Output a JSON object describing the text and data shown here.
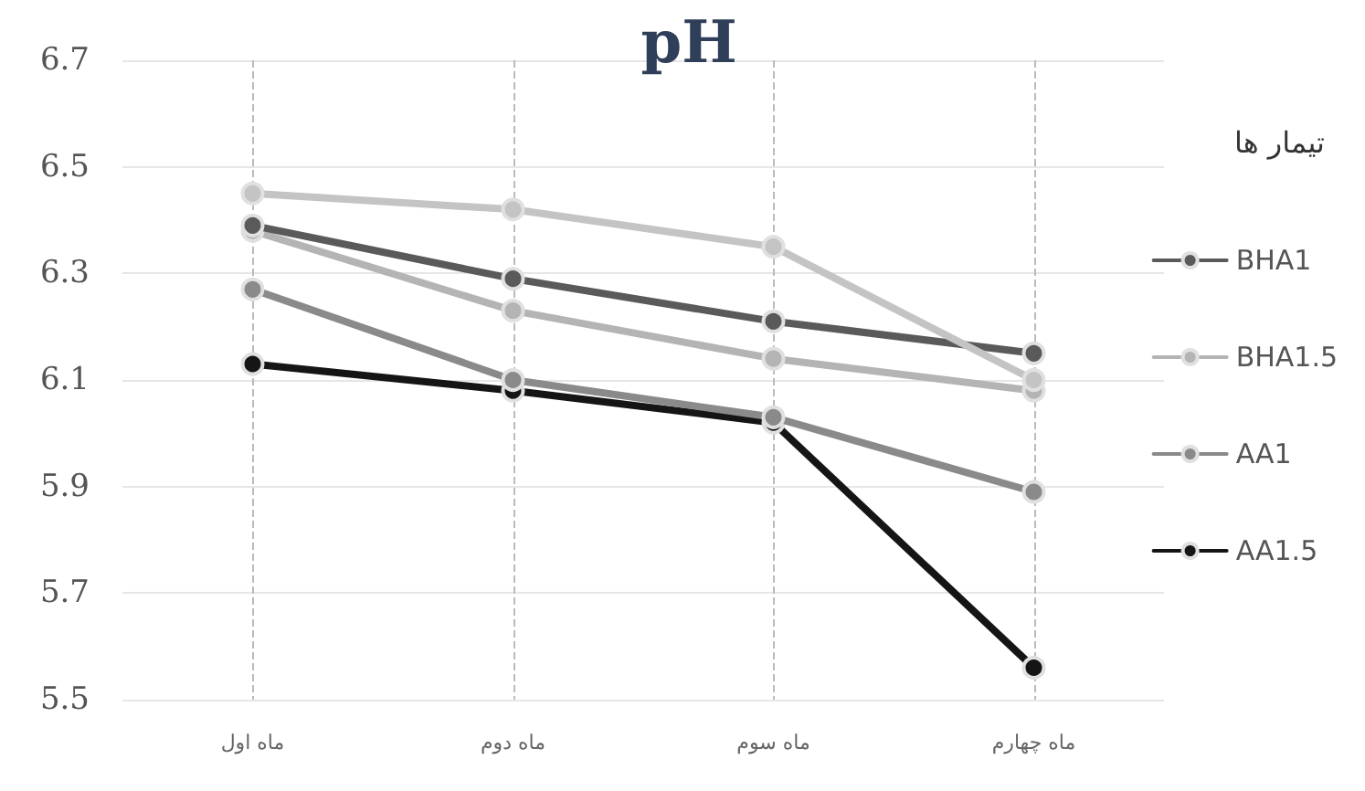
{
  "chart_data": {
    "type": "line",
    "title": "pH",
    "legend_title": "تیمار ها",
    "categories": [
      "ماه اول",
      "ماه دوم",
      "ماه سوم",
      "ماه چهارم"
    ],
    "series": [
      {
        "color": "#c4c4c4",
        "values": [
          6.45,
          6.42,
          6.35,
          6.1
        ]
      },
      {
        "name": "BHA1",
        "color": "#5a5a5a",
        "values": [
          6.39,
          6.29,
          6.21,
          6.15
        ]
      },
      {
        "name": "BHA1.5",
        "color": "#b4b4b4",
        "values": [
          6.38,
          6.23,
          6.14,
          6.08
        ]
      },
      {
        "name": "AA1",
        "color": "#8a8a8a",
        "values": [
          6.27,
          6.1,
          6.03,
          5.89
        ]
      },
      {
        "name": "AA1.5",
        "color": "#151515",
        "values": [
          6.13,
          6.08,
          6.02,
          5.56
        ]
      }
    ],
    "ylim": [
      5.5,
      6.7
    ],
    "yticks": [
      5.5,
      5.7,
      5.9,
      6.1,
      6.3,
      6.5,
      6.7
    ],
    "grid": true,
    "legend": "right",
    "marker": "circle",
    "line_style": "solid"
  }
}
